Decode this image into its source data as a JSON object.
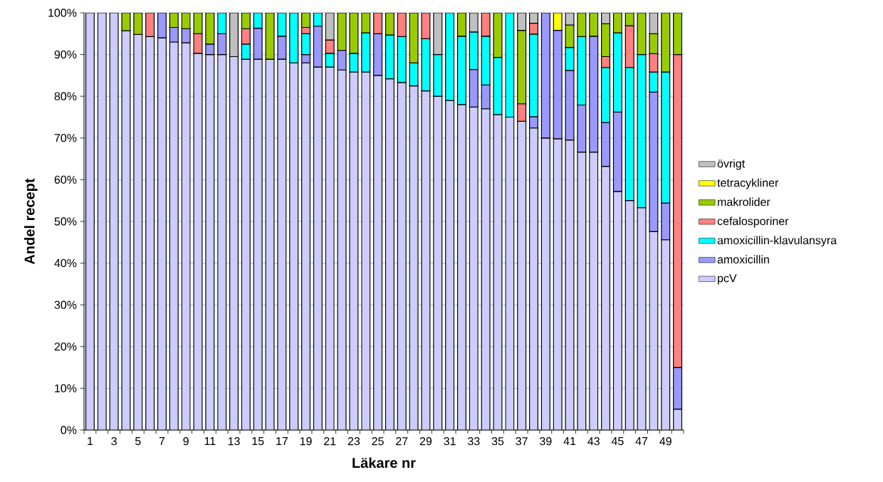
{
  "chart_data": {
    "type": "bar",
    "stacked": true,
    "xlabel": "Läkare nr",
    "ylabel": "Andel recept",
    "categories": [
      "1",
      null,
      "3",
      null,
      "5",
      null,
      "7",
      null,
      "9",
      null,
      "11",
      null,
      "13",
      null,
      "15",
      null,
      "17",
      null,
      "19",
      null,
      "21",
      null,
      "23",
      null,
      "25",
      null,
      "27",
      null,
      "29",
      null,
      "31",
      null,
      "33",
      null,
      "35",
      null,
      "37",
      null,
      "39",
      null,
      "41",
      null,
      "43",
      null,
      "45",
      null,
      "47",
      null,
      "49",
      null
    ],
    "series": [
      {
        "name": "pcV",
        "color": "#ccccff",
        "values": [
          100,
          100,
          100,
          95.7,
          94.8,
          94.3,
          94,
          93,
          92.8,
          90.3,
          90,
          90,
          89.5,
          88.9,
          88.9,
          88.9,
          88.9,
          88,
          88,
          87,
          87,
          86.3,
          85.8,
          85.8,
          85,
          84.2,
          83.3,
          82.5,
          81.3,
          80,
          79,
          78,
          77.4,
          77,
          75.6,
          75,
          74,
          72.4,
          70,
          69.8,
          69.5,
          66.6,
          66.6,
          63.2,
          57.2,
          55,
          53.3,
          47.6,
          45.6,
          5
        ]
      },
      {
        "name": "amoxicillin",
        "color": "#9999ff",
        "values": [
          null,
          null,
          null,
          null,
          null,
          null,
          6,
          3.5,
          3.4,
          null,
          2.5,
          5,
          null,
          null,
          7.4,
          null,
          5.5,
          null,
          2,
          9.8,
          null,
          4.7,
          null,
          null,
          10,
          null,
          null,
          null,
          null,
          null,
          null,
          null,
          9,
          5.7,
          null,
          null,
          null,
          2.7,
          30,
          26,
          16.7,
          11.3,
          27.8,
          10.5,
          19,
          null,
          null,
          33.4,
          8.8,
          10
        ]
      },
      {
        "name": "amoxicillin-klavulansyra",
        "color": "#00ffff",
        "values": [
          null,
          null,
          null,
          null,
          null,
          null,
          null,
          null,
          null,
          null,
          null,
          5,
          null,
          3.6,
          3.7,
          null,
          5.6,
          12,
          5,
          3.2,
          3.3,
          null,
          4.5,
          9.4,
          null,
          10.5,
          11,
          5.5,
          12.5,
          10,
          21,
          16.4,
          9,
          11.7,
          13.7,
          25,
          null,
          19.8,
          null,
          null,
          5.5,
          16.4,
          null,
          13.2,
          19,
          31.9,
          36.7,
          4.8,
          31.4,
          null
        ]
      },
      {
        "name": "cefalosporiner",
        "color": "#ff8080",
        "values": [
          null,
          null,
          null,
          null,
          null,
          5.7,
          null,
          null,
          null,
          4.7,
          null,
          null,
          null,
          3.7,
          null,
          null,
          null,
          null,
          1.5,
          null,
          3.2,
          null,
          null,
          null,
          5,
          null,
          5.7,
          null,
          6.2,
          null,
          null,
          null,
          null,
          5.6,
          null,
          null,
          4.2,
          2.6,
          null,
          null,
          null,
          null,
          null,
          2.6,
          null,
          10,
          null,
          4.4,
          null,
          75
        ]
      },
      {
        "name": "makrolider",
        "color": "#99cc00",
        "values": [
          null,
          null,
          null,
          4.3,
          5.2,
          null,
          null,
          3.5,
          3.8,
          5,
          7.5,
          null,
          null,
          3.8,
          null,
          11.1,
          null,
          null,
          3.5,
          null,
          null,
          9,
          9.7,
          4.8,
          null,
          5.3,
          null,
          12,
          null,
          null,
          null,
          5.6,
          null,
          null,
          10.7,
          null,
          17.6,
          null,
          null,
          null,
          5.4,
          5.7,
          5.6,
          7.9,
          4.8,
          3.1,
          10,
          4.8,
          14.2,
          10
        ]
      },
      {
        "name": "tetracykliner",
        "color": "#ffff00",
        "values": [
          null,
          null,
          null,
          null,
          null,
          null,
          null,
          null,
          null,
          null,
          null,
          null,
          null,
          null,
          null,
          null,
          null,
          null,
          null,
          null,
          null,
          null,
          null,
          null,
          null,
          null,
          null,
          null,
          null,
          null,
          null,
          null,
          null,
          null,
          null,
          null,
          null,
          null,
          null,
          4.2,
          null,
          null,
          null,
          null,
          null,
          null,
          null,
          null,
          null,
          null
        ]
      },
      {
        "name": "övrigt",
        "color": "#c0c0c0",
        "values": [
          null,
          null,
          null,
          null,
          null,
          null,
          null,
          null,
          null,
          null,
          null,
          null,
          10.5,
          null,
          null,
          null,
          null,
          null,
          null,
          null,
          6.5,
          null,
          null,
          null,
          null,
          null,
          null,
          null,
          null,
          10,
          null,
          null,
          4.6,
          null,
          null,
          null,
          4.2,
          2.5,
          null,
          null,
          2.9,
          null,
          null,
          2.6,
          null,
          null,
          null,
          5,
          null,
          null
        ]
      }
    ],
    "ylim": [
      0,
      100
    ],
    "yticks": [
      {
        "value": 0,
        "label": "0%"
      },
      {
        "value": 10,
        "label": "10%"
      },
      {
        "value": 20,
        "label": "20%"
      },
      {
        "value": 30,
        "label": "30%"
      },
      {
        "value": 40,
        "label": "40%"
      },
      {
        "value": 50,
        "label": "50%"
      },
      {
        "value": 60,
        "label": "60%"
      },
      {
        "value": 70,
        "label": "70%"
      },
      {
        "value": 80,
        "label": "80%"
      },
      {
        "value": 90,
        "label": "90%"
      },
      {
        "value": 100,
        "label": "100%"
      }
    ],
    "grid": "y",
    "legend": "right"
  }
}
